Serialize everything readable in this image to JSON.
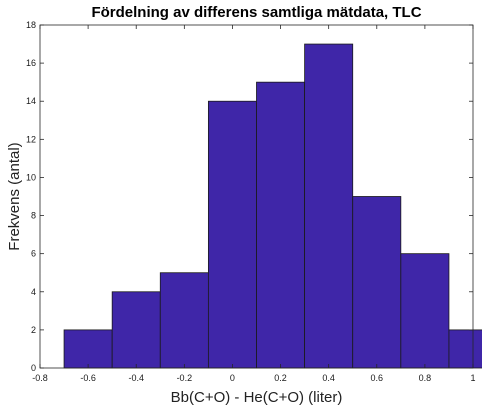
{
  "chart_data": {
    "type": "bar",
    "title": "Fördelning av differens samtliga mätdata, TLC",
    "xlabel": "Bb(C+O) - He(C+O) (liter)",
    "ylabel": "Frekvens (antal)",
    "xlim": [
      -0.8,
      1
    ],
    "ylim": [
      0,
      18
    ],
    "xticks": [
      -0.8,
      -0.6,
      -0.4,
      -0.2,
      0,
      0.2,
      0.4,
      0.6,
      0.8,
      1
    ],
    "yticks": [
      0,
      2,
      4,
      6,
      8,
      10,
      12,
      14,
      16,
      18
    ],
    "xtick_labels": [
      "-0.8",
      "-0.6",
      "-0.4",
      "-0.2",
      "0",
      "0.2",
      "0.4",
      "0.6",
      "0.8",
      "1"
    ],
    "ytick_labels": [
      "0",
      "2",
      "4",
      "6",
      "8",
      "10",
      "12",
      "14",
      "16",
      "18"
    ],
    "bin_edges": [
      -0.7,
      -0.5,
      -0.3,
      -0.1,
      0.1,
      0.3,
      0.5,
      0.7,
      0.9,
      1.1
    ],
    "bins": [
      {
        "x0": -0.7,
        "x1": -0.5,
        "count": 2
      },
      {
        "x0": -0.5,
        "x1": -0.3,
        "count": 4
      },
      {
        "x0": -0.3,
        "x1": -0.1,
        "count": 5
      },
      {
        "x0": -0.1,
        "x1": 0.1,
        "count": 14
      },
      {
        "x0": 0.1,
        "x1": 0.3,
        "count": 15
      },
      {
        "x0": 0.3,
        "x1": 0.5,
        "count": 17
      },
      {
        "x0": 0.5,
        "x1": 0.7,
        "count": 9
      },
      {
        "x0": 0.7,
        "x1": 0.9,
        "count": 6
      },
      {
        "x0": 0.9,
        "x1": 1.1,
        "count": 2
      }
    ],
    "grid": false,
    "legend": "none",
    "bar_color": "#3f26a8",
    "edge_color": "#1a1a1a"
  }
}
